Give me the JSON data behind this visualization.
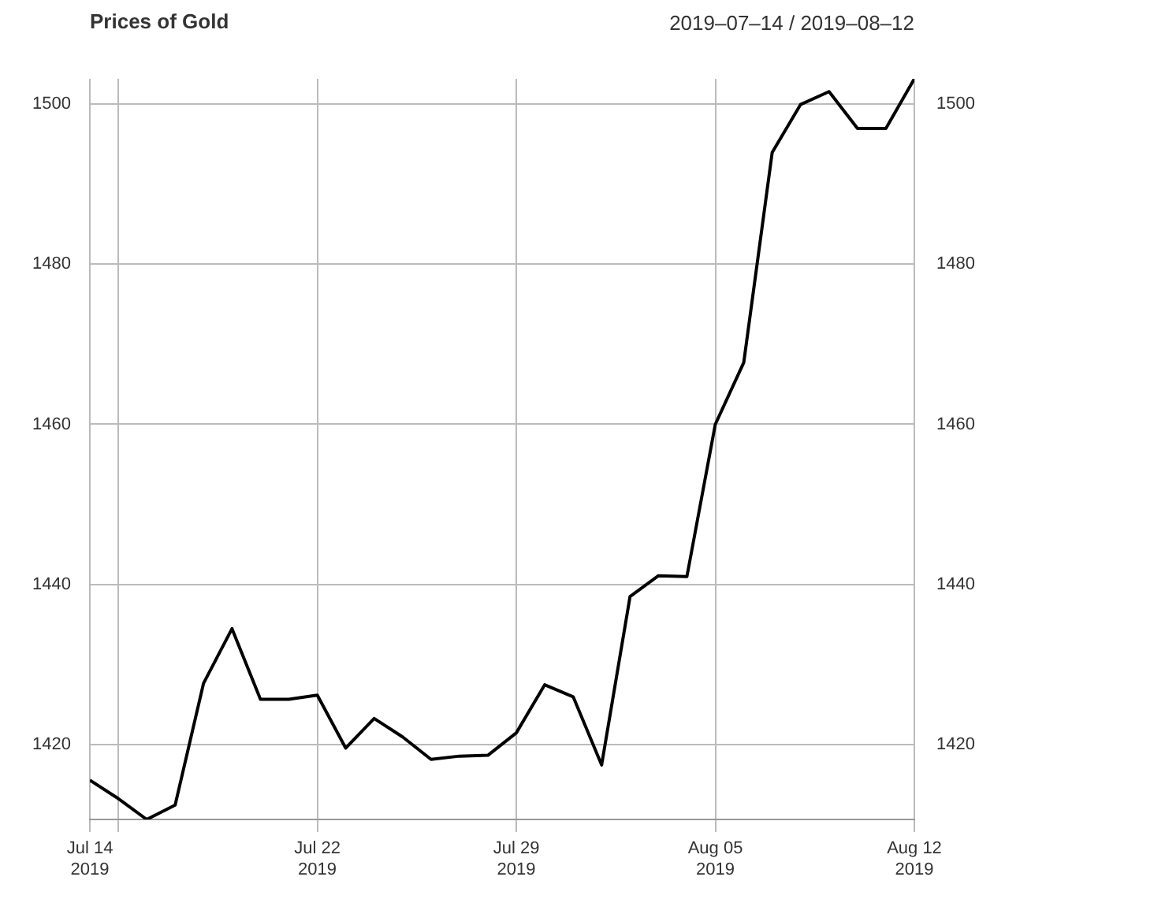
{
  "chart_data": {
    "type": "line",
    "title": "Prices of Gold",
    "subtitle": "2019–07–14 / 2019–08–12",
    "x": [
      "2019-07-14",
      "2019-07-15",
      "2019-07-16",
      "2019-07-17",
      "2019-07-18",
      "2019-07-19",
      "2019-07-20",
      "2019-07-21",
      "2019-07-22",
      "2019-07-23",
      "2019-07-24",
      "2019-07-25",
      "2019-07-26",
      "2019-07-27",
      "2019-07-28",
      "2019-07-29",
      "2019-07-30",
      "2019-07-31",
      "2019-08-01",
      "2019-08-02",
      "2019-08-03",
      "2019-08-04",
      "2019-08-05",
      "2019-08-06",
      "2019-08-07",
      "2019-08-08",
      "2019-08-09",
      "2019-08-10",
      "2019-08-11",
      "2019-08-12"
    ],
    "series": [
      {
        "color": "#000000",
        "values": [
          1415.6,
          1413.3,
          1410.7,
          1412.5,
          1427.7,
          1434.5,
          1425.7,
          1425.7,
          1426.2,
          1419.6,
          1423.3,
          1421.0,
          1418.2,
          1418.6,
          1418.7,
          1421.5,
          1427.5,
          1426.0,
          1417.5,
          1438.5,
          1441.1,
          1441.0,
          1460.0,
          1467.7,
          1493.9,
          1499.9,
          1501.5,
          1496.9,
          1496.9,
          1503.1
        ]
      }
    ],
    "xlim": [
      "2019-07-14",
      "2019-08-12"
    ],
    "xticks": [
      {
        "value": "2019-07-14",
        "label": "Jul 14\n2019"
      },
      {
        "value": "2019-07-15",
        "label": null
      },
      {
        "value": "2019-07-22",
        "label": "Jul 22\n2019"
      },
      {
        "value": "2019-07-29",
        "label": "Jul 29\n2019"
      },
      {
        "value": "2019-08-05",
        "label": "Aug 05\n2019"
      },
      {
        "value": "2019-08-12",
        "label": "Aug 12\n2019"
      }
    ],
    "ylim": [
      1410.7,
      1503.1
    ],
    "yticks": [
      1420,
      1440,
      1460,
      1480,
      1500
    ],
    "y2lim": [
      1410.7,
      1503.1
    ],
    "y2ticks": [
      1420,
      1440,
      1460,
      1480,
      1500
    ],
    "grid": true,
    "marker": "none",
    "line_style": "solid"
  }
}
